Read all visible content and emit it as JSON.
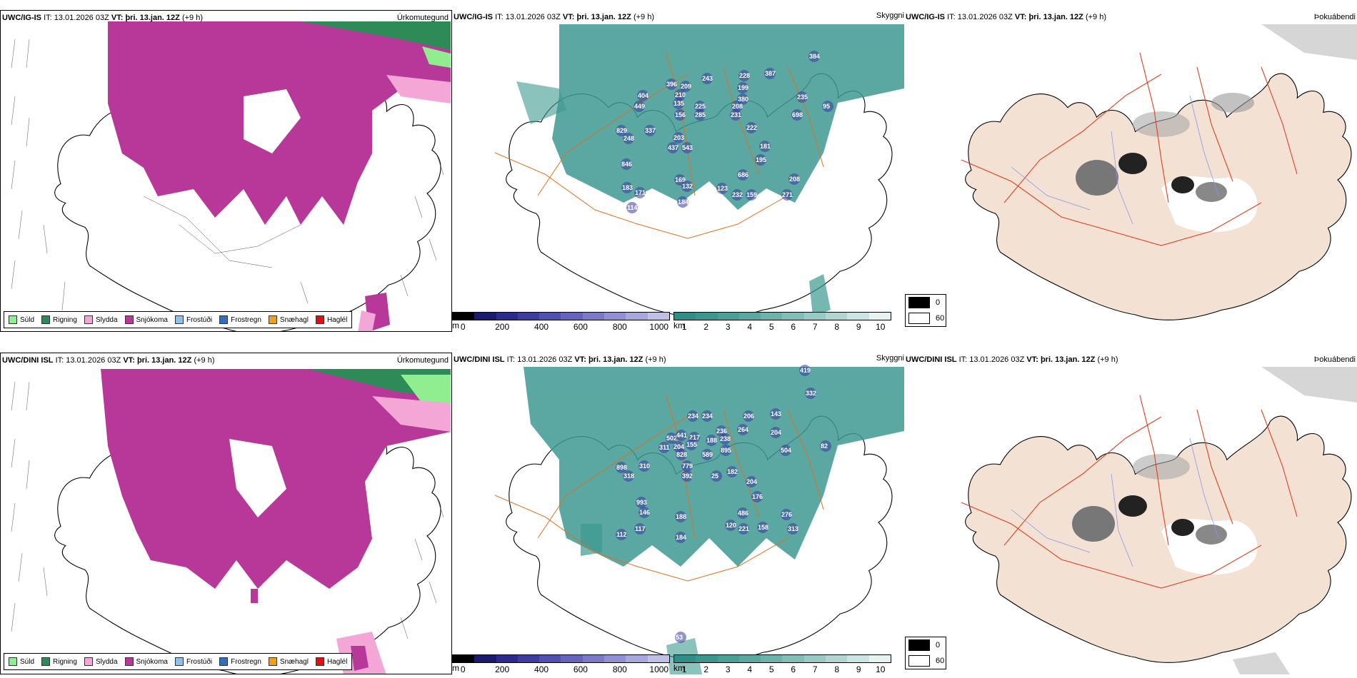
{
  "rows": [
    {
      "model": "UWC/IG-IS",
      "it_label": "IT:",
      "it": "13.01.2026 03Z",
      "vt_label": "VT:",
      "vt": "þri. 13.jan. 12Z",
      "lead": "(+9 h)",
      "fields": [
        "Úrkomutegund",
        "Skyggni",
        "Þokuábendi"
      ],
      "vis_values": [
        "384",
        "396",
        "209",
        "243",
        "228",
        "387",
        "404",
        "210",
        "199",
        "380",
        "235",
        "449",
        "135",
        "225",
        "208",
        "95",
        "156",
        "285",
        "231",
        "698",
        "829",
        "337",
        "248",
        "203",
        "222",
        "437",
        "543",
        "181",
        "846",
        "195",
        "686",
        "169",
        "132",
        "208",
        "183",
        "123",
        "232",
        "159",
        "271",
        "171",
        "184",
        "114"
      ]
    },
    {
      "model": "UWC/DINI ISL",
      "it_label": "IT:",
      "it": "13.01.2026 03Z",
      "vt_label": "VT:",
      "vt": "þri. 13.jan. 12Z",
      "lead": "(+9 h)",
      "fields": [
        "Úrkomutegund",
        "Skyggni",
        "Þokuábendi"
      ],
      "vis_values": [
        "419",
        "332",
        "234",
        "234",
        "206",
        "143",
        "502",
        "441",
        "217",
        "236",
        "264",
        "204",
        "311",
        "204",
        "155",
        "188",
        "238",
        "82",
        "828",
        "895",
        "504",
        "898",
        "310",
        "779",
        "589",
        "318",
        "392",
        "25",
        "182",
        "204",
        "176",
        "993",
        "486",
        "146",
        "188",
        "276",
        "120",
        "221",
        "158",
        "313",
        "117",
        "184",
        "112",
        "53"
      ]
    }
  ],
  "precip_legend": [
    {
      "label": "Súld",
      "color": "#90ee90"
    },
    {
      "label": "Rigning",
      "color": "#2e8b57"
    },
    {
      "label": "Slydda",
      "color": "#f4a6d7"
    },
    {
      "label": "Snjókoma",
      "color": "#b8389a"
    },
    {
      "label": "Frostúði",
      "color": "#8fbfee"
    },
    {
      "label": "Frostregn",
      "color": "#2f6fbf"
    },
    {
      "label": "Snæhagl",
      "color": "#f0a020"
    },
    {
      "label": "Haglél",
      "color": "#e01010"
    }
  ],
  "ceiling_scale": {
    "unit": "m",
    "ticks": [
      "0",
      "200",
      "400",
      "600",
      "800",
      "1000"
    ],
    "colors": [
      "#000000",
      "#1a1a6e",
      "#2b2b8c",
      "#3d3da0",
      "#5050b0",
      "#6464bd",
      "#7a7ac8",
      "#9090d2",
      "#a8a8dc",
      "#c0c0e6"
    ]
  },
  "vis_scale": {
    "unit": "km",
    "ticks": [
      "1",
      "2",
      "3",
      "4",
      "5",
      "6",
      "7",
      "8",
      "9",
      "10"
    ],
    "colors": [
      "#2f8f88",
      "#3b968f",
      "#4a9f98",
      "#5aa8a1",
      "#6db2ab",
      "#82bdb7",
      "#98c9c4",
      "#b1d6d2",
      "#cbe5e2",
      "#e6f3f1"
    ]
  },
  "fog_scale": {
    "ticks": [
      "0",
      "60"
    ],
    "colors": [
      "#000000",
      "#ffffff"
    ]
  },
  "colors": {
    "snow": "#b8389a",
    "sleet": "#f4a6d7",
    "rain": "#2e8b57",
    "vis": "#3d9990",
    "land": "#f3e2d3",
    "roads": "#e07020",
    "rivers": "#8c96f0"
  }
}
